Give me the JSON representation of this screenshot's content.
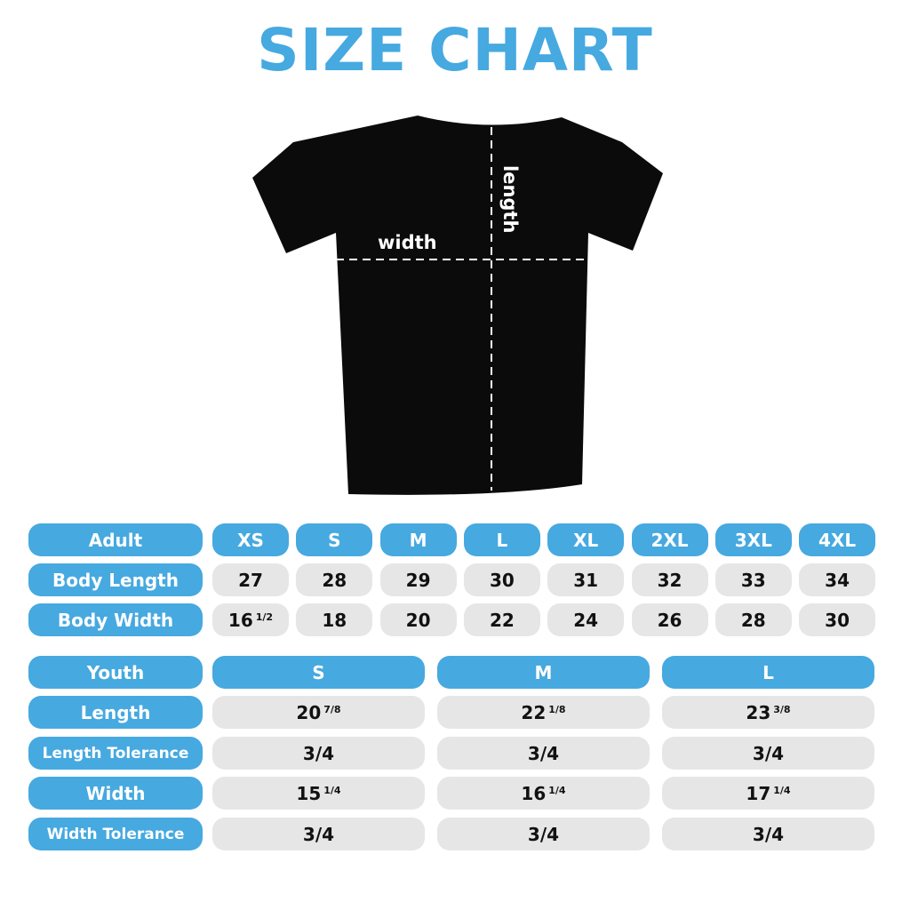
{
  "title": "SIZE CHART",
  "diagram": {
    "width_label": "width",
    "length_label": "length"
  },
  "colors": {
    "accent": "#46a9e0",
    "cell": "#e6e6e7",
    "shirt": "#0b0b0b"
  },
  "adult": {
    "header": "Adult",
    "sizes": [
      "XS",
      "S",
      "M",
      "L",
      "XL",
      "2XL",
      "3XL",
      "4XL"
    ],
    "rows": [
      {
        "label": "Body Length",
        "values": [
          {
            "w": "27",
            "f": ""
          },
          {
            "w": "28",
            "f": ""
          },
          {
            "w": "29",
            "f": ""
          },
          {
            "w": "30",
            "f": ""
          },
          {
            "w": "31",
            "f": ""
          },
          {
            "w": "32",
            "f": ""
          },
          {
            "w": "33",
            "f": ""
          },
          {
            "w": "34",
            "f": ""
          }
        ]
      },
      {
        "label": "Body Width",
        "values": [
          {
            "w": "16",
            "f": "1/2"
          },
          {
            "w": "18",
            "f": ""
          },
          {
            "w": "20",
            "f": ""
          },
          {
            "w": "22",
            "f": ""
          },
          {
            "w": "24",
            "f": ""
          },
          {
            "w": "26",
            "f": ""
          },
          {
            "w": "28",
            "f": ""
          },
          {
            "w": "30",
            "f": ""
          }
        ]
      }
    ]
  },
  "youth": {
    "header": "Youth",
    "sizes": [
      "S",
      "M",
      "L"
    ],
    "rows": [
      {
        "label": "Length",
        "values": [
          {
            "w": "20",
            "f": "7/8"
          },
          {
            "w": "22",
            "f": "1/8"
          },
          {
            "w": "23",
            "f": "3/8"
          }
        ]
      },
      {
        "label": "Length Tolerance",
        "values": [
          {
            "w": "3/4",
            "f": ""
          },
          {
            "w": "3/4",
            "f": ""
          },
          {
            "w": "3/4",
            "f": ""
          }
        ]
      },
      {
        "label": "Width",
        "values": [
          {
            "w": "15",
            "f": "1/4"
          },
          {
            "w": "16",
            "f": "1/4"
          },
          {
            "w": "17",
            "f": "1/4"
          }
        ]
      },
      {
        "label": "Width Tolerance",
        "values": [
          {
            "w": "3/4",
            "f": ""
          },
          {
            "w": "3/4",
            "f": ""
          },
          {
            "w": "3/4",
            "f": ""
          }
        ]
      }
    ]
  }
}
